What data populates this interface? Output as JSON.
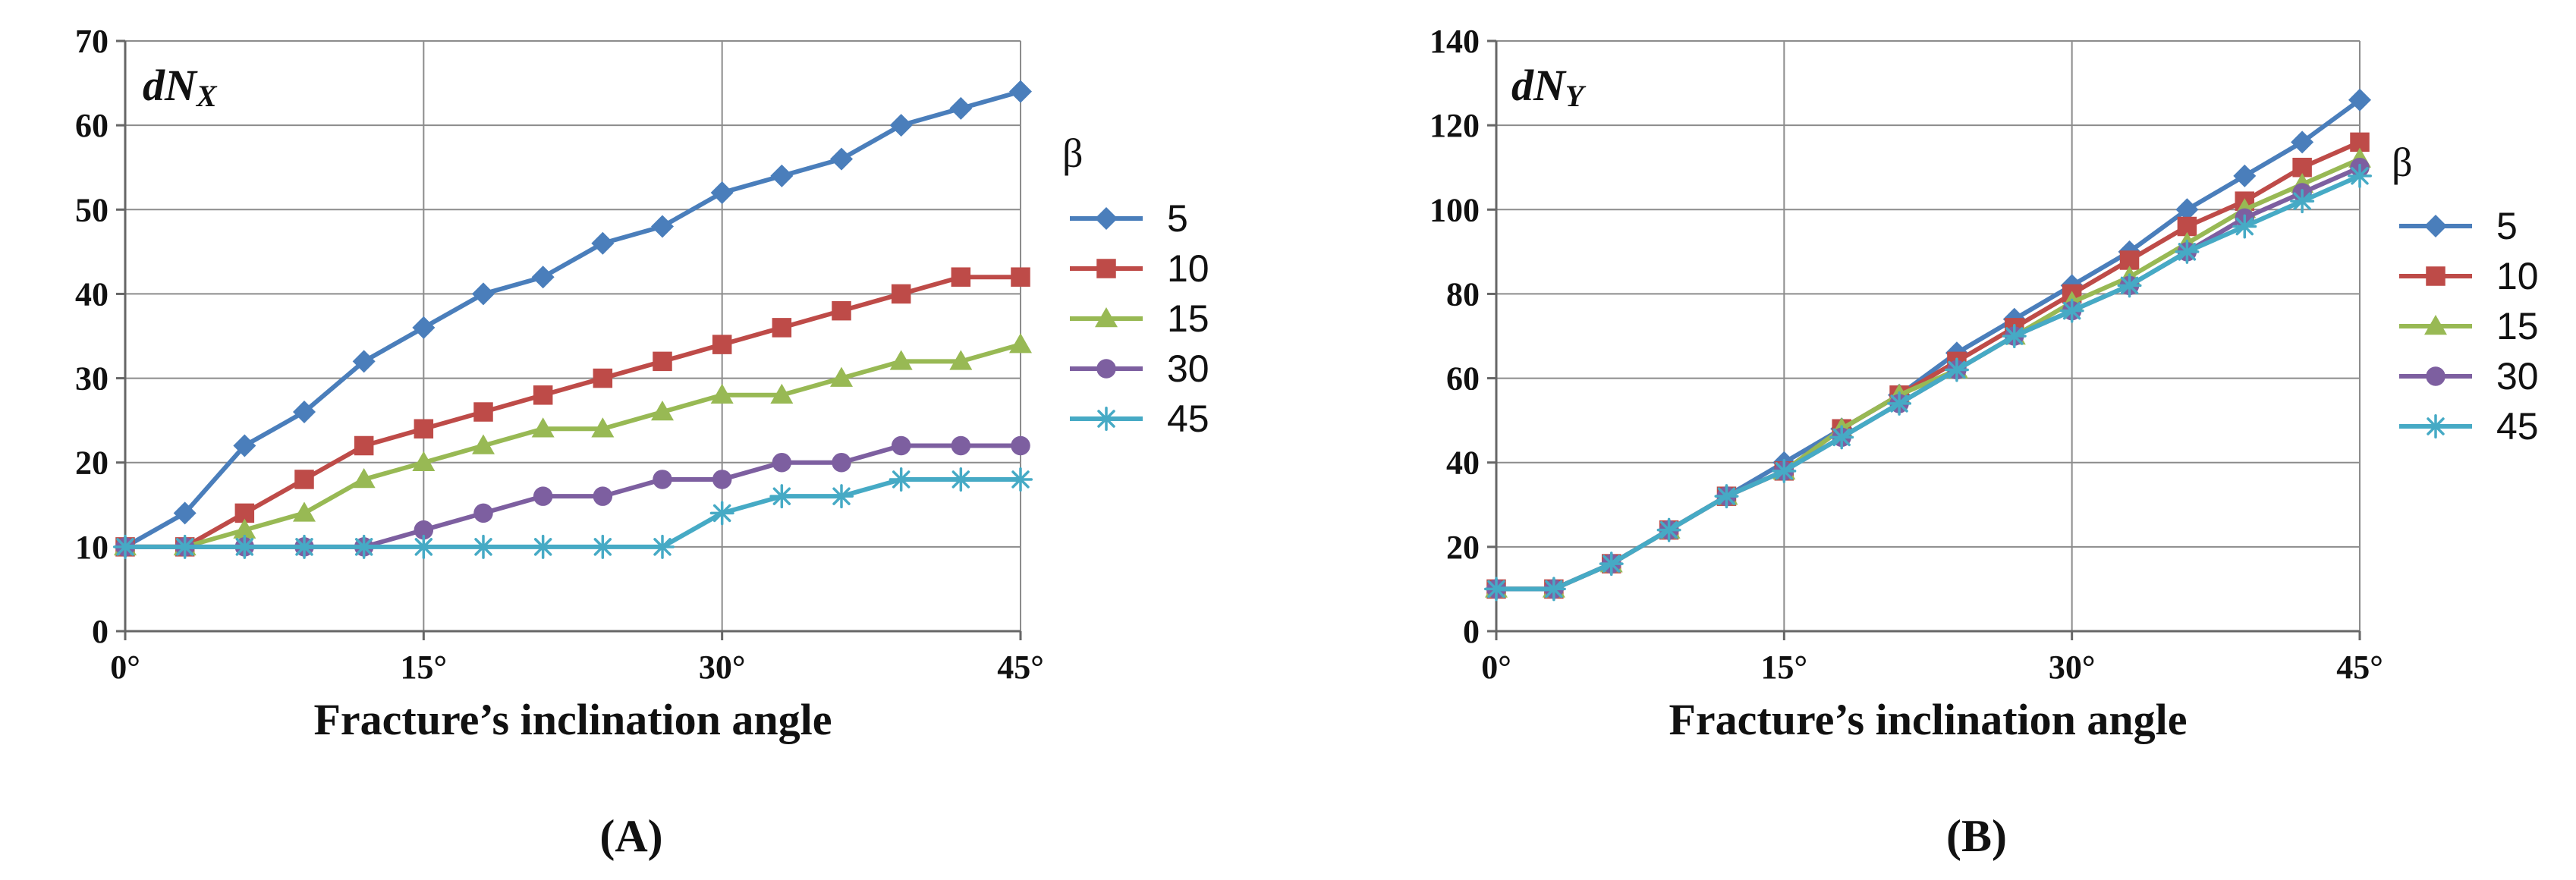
{
  "chart_data": [
    {
      "type": "line",
      "panel_label": "(A)",
      "corner_label": {
        "main": "dN",
        "sub": "X"
      },
      "xlabel": "Fracture’s inclination angle",
      "x": [
        0,
        3,
        6,
        9,
        12,
        15,
        18,
        21,
        24,
        27,
        30,
        33,
        36,
        39,
        42,
        45
      ],
      "xlim": [
        0,
        45
      ],
      "x_ticks": [
        0,
        15,
        30,
        45
      ],
      "x_tick_labels": [
        "0°",
        "15°",
        "30°",
        "45°"
      ],
      "ylim": [
        0,
        70
      ],
      "y_ticks": [
        0,
        10,
        20,
        30,
        40,
        50,
        60,
        70
      ],
      "grid": true,
      "legend": {
        "title": "β",
        "position": "right"
      },
      "series": [
        {
          "name": "5",
          "color": "#4a7ebb",
          "marker": "diamond",
          "values": [
            10,
            14,
            22,
            26,
            32,
            36,
            40,
            42,
            46,
            48,
            52,
            54,
            56,
            60,
            62,
            64
          ]
        },
        {
          "name": "10",
          "color": "#be4b48",
          "marker": "square",
          "values": [
            10,
            10,
            14,
            18,
            22,
            24,
            26,
            28,
            30,
            32,
            34,
            36,
            38,
            40,
            42,
            42
          ]
        },
        {
          "name": "15",
          "color": "#98b954",
          "marker": "triangle",
          "values": [
            10,
            10,
            12,
            14,
            18,
            20,
            22,
            24,
            24,
            26,
            28,
            28,
            30,
            32,
            32,
            34
          ]
        },
        {
          "name": "30",
          "color": "#7d5fa0",
          "marker": "circle",
          "values": [
            10,
            10,
            10,
            10,
            10,
            12,
            14,
            16,
            16,
            18,
            18,
            20,
            20,
            22,
            22,
            22
          ]
        },
        {
          "name": "45",
          "color": "#46aac5",
          "marker": "asterisk",
          "values": [
            10,
            10,
            10,
            10,
            10,
            10,
            10,
            10,
            10,
            10,
            14,
            16,
            16,
            18,
            18,
            18
          ]
        }
      ]
    },
    {
      "type": "line",
      "panel_label": "(B)",
      "corner_label": {
        "main": "dN",
        "sub": "Y"
      },
      "xlabel": "Fracture’s inclination angle",
      "x": [
        0,
        3,
        6,
        9,
        12,
        15,
        18,
        21,
        24,
        27,
        30,
        33,
        36,
        39,
        42,
        45
      ],
      "xlim": [
        0,
        45
      ],
      "x_ticks": [
        0,
        15,
        30,
        45
      ],
      "x_tick_labels": [
        "0°",
        "15°",
        "30°",
        "45°"
      ],
      "ylim": [
        0,
        140
      ],
      "y_ticks": [
        0,
        20,
        40,
        60,
        80,
        100,
        120,
        140
      ],
      "grid": true,
      "legend": {
        "title": "β",
        "position": "right"
      },
      "series": [
        {
          "name": "5",
          "color": "#4a7ebb",
          "marker": "diamond",
          "values": [
            10,
            10,
            16,
            24,
            32,
            40,
            48,
            56,
            66,
            74,
            82,
            90,
            100,
            108,
            116,
            126
          ]
        },
        {
          "name": "10",
          "color": "#be4b48",
          "marker": "square",
          "values": [
            10,
            10,
            16,
            24,
            32,
            38,
            48,
            56,
            64,
            72,
            80,
            88,
            96,
            102,
            110,
            116
          ]
        },
        {
          "name": "15",
          "color": "#98b954",
          "marker": "triangle",
          "values": [
            10,
            10,
            16,
            24,
            32,
            38,
            48,
            56,
            62,
            70,
            78,
            84,
            92,
            100,
            106,
            112
          ]
        },
        {
          "name": "30",
          "color": "#7d5fa0",
          "marker": "circle",
          "values": [
            10,
            10,
            16,
            24,
            32,
            38,
            46,
            54,
            62,
            70,
            76,
            82,
            90,
            98,
            104,
            110
          ]
        },
        {
          "name": "45",
          "color": "#46aac5",
          "marker": "asterisk",
          "values": [
            10,
            10,
            16,
            24,
            32,
            38,
            46,
            54,
            62,
            70,
            76,
            82,
            90,
            96,
            102,
            108
          ]
        }
      ]
    }
  ]
}
